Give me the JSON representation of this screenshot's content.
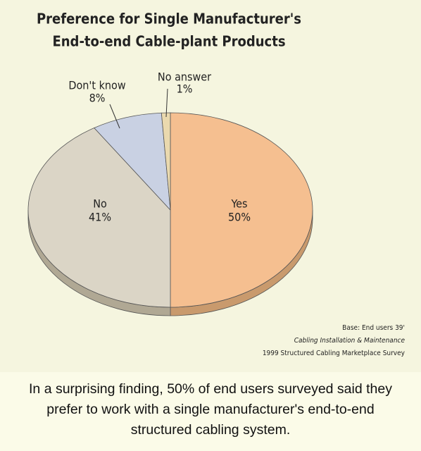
{
  "chart_data": {
    "type": "pie",
    "title": [
      "Preference for Single Manufacturer's",
      "End-to-end Cable-plant Products"
    ],
    "categories": [
      "Yes",
      "No",
      "Don't know",
      "No answer"
    ],
    "values": [
      50,
      41,
      8,
      1
    ],
    "value_labels": [
      "50%",
      "41%",
      "8%",
      "1%"
    ],
    "colors": [
      "#f5bf90",
      "#dbd5c6",
      "#c9d1e3",
      "#ead9ae"
    ],
    "side_colors": [
      "#c99a6d",
      "#b0a894",
      "#9aa3b8",
      "#bba97f"
    ],
    "source": [
      "Base: End users 39'",
      "Cabling Installation & Maintenance",
      "1999 Structured Cabling Marketplace Survey"
    ]
  },
  "caption": "In a surprising finding, 50% of end users surveyed said they prefer to work with a single manufacturer's end-to-end structured cabling system."
}
